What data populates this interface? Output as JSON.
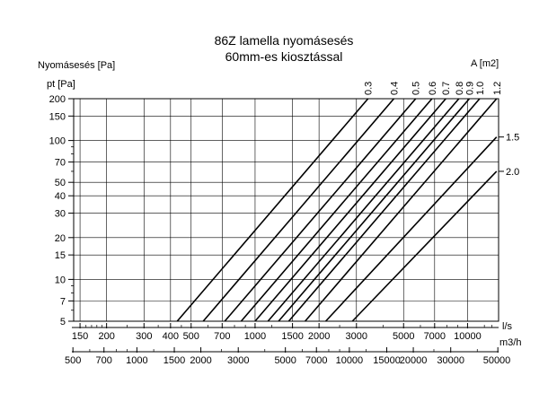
{
  "chart_data": {
    "type": "line",
    "title_lines": [
      "86Z lamella nyomásesés",
      "60mm-es kiosztással"
    ],
    "ylabel": "Nyomásesés [Pa]",
    "y_unit_label": "pt [Pa]",
    "area_axis_label": "A [m2]",
    "x_unit_ls": "l/s",
    "x_unit_m3h": "m3/h",
    "y_scale": "log",
    "x_scale": "log",
    "grid": true,
    "ylim": [
      5,
      200
    ],
    "xlim_ls": [
      140,
      14000
    ],
    "y_ticks": [
      5,
      7,
      10,
      15,
      20,
      30,
      40,
      50,
      70,
      100,
      150,
      200
    ],
    "y_tick_labels": [
      "5",
      "7",
      "10",
      "15",
      "20",
      "30",
      "40",
      "50",
      "70",
      "100",
      "150",
      "200"
    ],
    "x_ticks_ls": [
      150,
      200,
      300,
      400,
      500,
      700,
      1000,
      1500,
      2000,
      3000,
      5000,
      7000,
      10000
    ],
    "x_tick_labels_ls": [
      "150",
      "200",
      "300",
      "400",
      "500",
      "700",
      "1000",
      "1500",
      "2000",
      "3000",
      "5000",
      "7000",
      "10000"
    ],
    "x_ticks_m3h": [
      500,
      700,
      1000,
      1500,
      2000,
      3000,
      5000,
      7000,
      10000,
      15000,
      20000,
      30000,
      50000
    ],
    "x_tick_labels_m3h": [
      "500",
      "700",
      "1000",
      "1500",
      "2000",
      "3000",
      "5000",
      "7000",
      "10000",
      "15000",
      "20000",
      "30000",
      "50000"
    ],
    "series": [
      {
        "name": "0.3",
        "x": [
          430,
          3400
        ],
        "y": [
          5,
          200
        ]
      },
      {
        "name": "0.4",
        "x": [
          570,
          4500
        ],
        "y": [
          5,
          200
        ]
      },
      {
        "name": "0.5",
        "x": [
          720,
          5700
        ],
        "y": [
          5,
          200
        ]
      },
      {
        "name": "0.6",
        "x": [
          860,
          6800
        ],
        "y": [
          5,
          200
        ]
      },
      {
        "name": "0.7",
        "x": [
          1000,
          7900
        ],
        "y": [
          5,
          200
        ]
      },
      {
        "name": "0.8",
        "x": [
          1150,
          9100
        ],
        "y": [
          5,
          200
        ]
      },
      {
        "name": "0.9",
        "x": [
          1290,
          10200
        ],
        "y": [
          5,
          200
        ]
      },
      {
        "name": "1.0",
        "x": [
          1440,
          11400
        ],
        "y": [
          5,
          200
        ]
      },
      {
        "name": "1.2",
        "x": [
          1720,
          13700
        ],
        "y": [
          5,
          200
        ]
      },
      {
        "name": "1.5",
        "x": [
          2150,
          13700
        ],
        "y": [
          5,
          106
        ]
      },
      {
        "name": "2.0",
        "x": [
          2870,
          13700
        ],
        "y": [
          5,
          60
        ]
      }
    ]
  }
}
